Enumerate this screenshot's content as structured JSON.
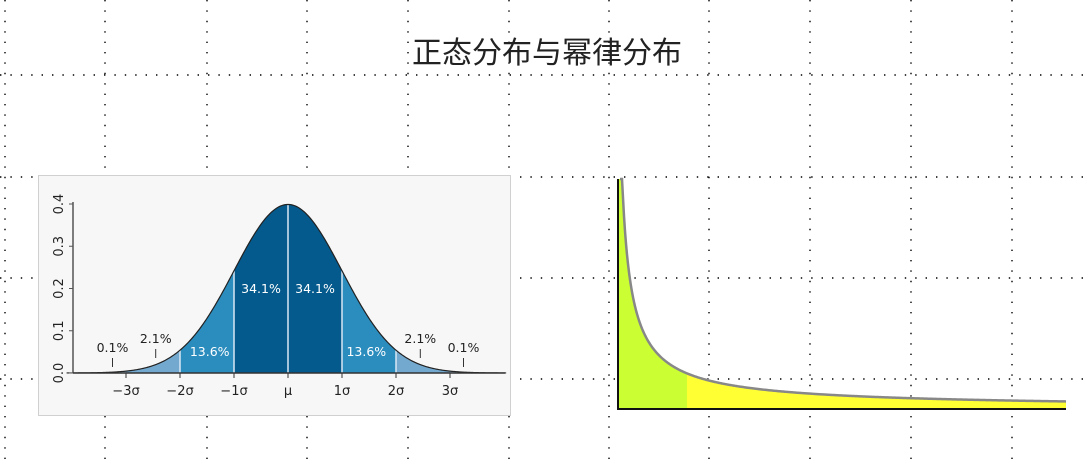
{
  "slide": {
    "title": "正态分布与幂律分布"
  },
  "colors": {
    "dark_blue": "#045a8d",
    "mid_blue": "#2b8cbe",
    "light_blue": "#74a9cf",
    "green_fill": "#ccff33",
    "yellow_fill": "#ffff33",
    "curve_gray": "#888888"
  },
  "chart_data": [
    {
      "type": "area",
      "distribution": "normal",
      "y_ticks": [
        "0.0",
        "0.1",
        "0.2",
        "0.3",
        "0.4"
      ],
      "ylim": [
        0,
        0.4
      ],
      "x_ticks": [
        "−3σ",
        "−2σ",
        "−1σ",
        "μ",
        "1σ",
        "2σ",
        "3σ"
      ],
      "x_tick_values": [
        -3,
        -2,
        -1,
        0,
        1,
        2,
        3
      ],
      "regions": [
        {
          "range": [
            -1,
            0
          ],
          "label": "34.1%"
        },
        {
          "range": [
            0,
            1
          ],
          "label": "34.1%"
        },
        {
          "range": [
            -2,
            -1
          ],
          "label": "13.6%"
        },
        {
          "range": [
            1,
            2
          ],
          "label": "13.6%"
        },
        {
          "range": [
            -3,
            -2
          ],
          "label": "2.1%"
        },
        {
          "range": [
            2,
            3
          ],
          "label": "2.1%"
        },
        {
          "range": [
            -4,
            -3
          ],
          "label": "0.1%"
        },
        {
          "range": [
            3,
            4
          ],
          "label": "0.1%"
        }
      ]
    },
    {
      "type": "area",
      "distribution": "power-law",
      "highlight": "head (green) vs long tail (yellow)"
    }
  ]
}
